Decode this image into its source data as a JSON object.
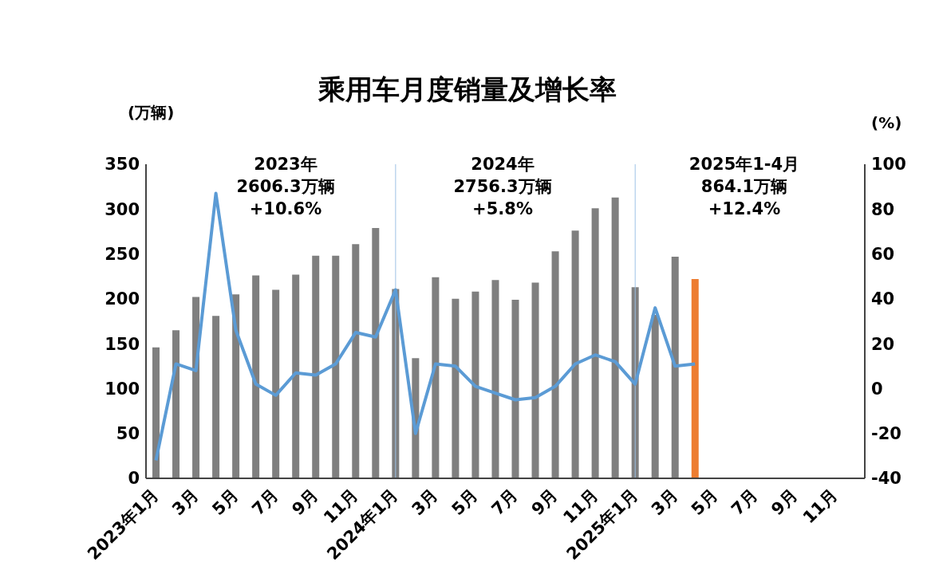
{
  "chart_data": {
    "type": "bar",
    "title": "乘用车月度销量及增长率",
    "ylabel": "(万辆)",
    "y2label": "(%)",
    "categories": [
      "2023年1月",
      null,
      "3月",
      null,
      "5月",
      null,
      "7月",
      null,
      "9月",
      null,
      "11月",
      null,
      "2024年1月",
      null,
      "3月",
      null,
      "5月",
      null,
      "7月",
      null,
      "9月",
      null,
      "11月",
      null,
      "2025年1月",
      null,
      "3月",
      null,
      "5月",
      null,
      "7月",
      null,
      "9月",
      null,
      "11月",
      null
    ],
    "series": [
      {
        "color": "#7f7f7f",
        "colors": [
          "#7f7f7f",
          "#7f7f7f",
          "#7f7f7f",
          "#7f7f7f",
          "#7f7f7f",
          "#7f7f7f",
          "#7f7f7f",
          "#7f7f7f",
          "#7f7f7f",
          "#7f7f7f",
          "#7f7f7f",
          "#7f7f7f",
          "#7f7f7f",
          "#7f7f7f",
          "#7f7f7f",
          "#7f7f7f",
          "#7f7f7f",
          "#7f7f7f",
          "#7f7f7f",
          "#7f7f7f",
          "#7f7f7f",
          "#7f7f7f",
          "#7f7f7f",
          "#7f7f7f",
          "#7f7f7f",
          "#7f7f7f",
          "#7f7f7f",
          "#ed7d31",
          null,
          null,
          null,
          null,
          null,
          null,
          null,
          null
        ],
        "values": [
          146,
          165,
          202,
          181,
          205,
          226,
          210,
          227,
          248,
          248,
          261,
          279,
          211,
          134,
          224,
          200,
          208,
          221,
          199,
          218,
          253,
          276,
          301,
          313,
          213,
          182,
          247,
          222,
          null,
          null,
          null,
          null,
          null,
          null,
          null,
          null
        ]
      },
      {
        "type": "line",
        "axis": "y2",
        "color": "#5b9bd5",
        "values": [
          -32,
          11,
          8,
          87,
          26,
          2,
          -3,
          7,
          6,
          11,
          25,
          23,
          44,
          -20,
          11,
          10,
          1,
          -2,
          -5,
          -4,
          1,
          11,
          15,
          12,
          2,
          36,
          10,
          11,
          null,
          null,
          null,
          null,
          null,
          null,
          null,
          null
        ]
      }
    ],
    "ylim": [
      0,
      350
    ],
    "yticks": [
      0,
      50,
      100,
      150,
      200,
      250,
      300,
      350
    ],
    "y2lim": [
      -40,
      100
    ],
    "y2ticks": [
      -40,
      -20,
      0,
      20,
      40,
      60,
      80,
      100
    ],
    "ref_lines": [
      {
        "axis": "x",
        "value": "2024年1月",
        "color": "#9dc3e6"
      },
      {
        "axis": "x",
        "value": "2025年1月",
        "color": "#9dc3e6"
      }
    ],
    "annotations": [
      "2023年\n2606.3万辆\n+10.6%",
      "2024年\n2756.3万辆\n+5.8%",
      "2025年1-4月\n864.1万辆\n+12.4%"
    ],
    "grid": false,
    "legend": false
  }
}
